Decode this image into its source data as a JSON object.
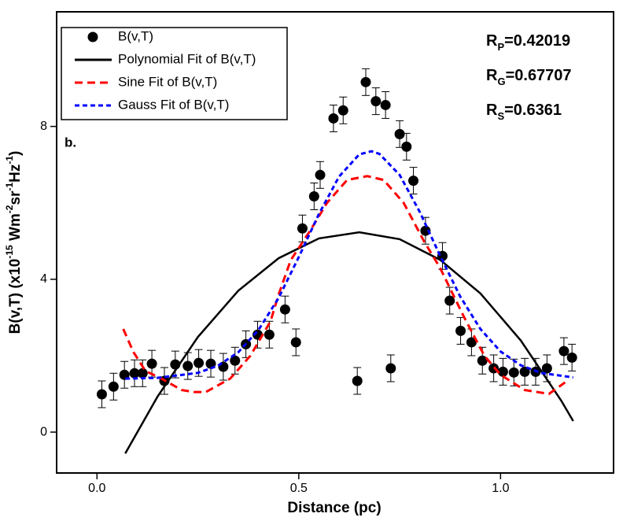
{
  "chart_data": {
    "type": "scatter",
    "xlabel": "Distance (pc)",
    "ylabel": [
      "B(v,T) (x10",
      "-15",
      " Wm",
      "-2",
      "sr",
      "-1",
      "Hz",
      "-1",
      ")"
    ],
    "xlim": [
      -0.1,
      1.28
    ],
    "ylim": [
      -1.07,
      11
    ],
    "xticks": [
      {
        "value": 0,
        "label": "0.0"
      },
      0.5,
      {
        "value": 1,
        "label": "1.0"
      }
    ],
    "yticks": [
      0,
      4,
      8
    ],
    "legend": "upper left",
    "panel_label": "b.",
    "annotations": [
      {
        "base": "R",
        "sub": "P",
        "rest": "=0.42019"
      },
      {
        "base": "R",
        "sub": "G",
        "rest": "=0.67707"
      },
      {
        "base": "R",
        "sub": "S",
        "rest": "=0.6361"
      }
    ],
    "series": [
      {
        "name": "B(v,T)",
        "type": "scatter",
        "color": "#000000",
        "x": [
          0.012,
          0.041,
          0.068,
          0.093,
          0.113,
          0.136,
          0.167,
          0.194,
          0.225,
          0.252,
          0.282,
          0.313,
          0.342,
          0.369,
          0.398,
          0.427,
          0.466,
          0.493,
          0.509,
          0.538,
          0.553,
          0.586,
          0.61,
          0.645,
          0.666,
          0.691,
          0.715,
          0.728,
          0.75,
          0.767,
          0.784,
          0.814,
          0.856,
          0.874,
          0.901,
          0.928,
          0.955,
          0.983,
          1.006,
          1.033,
          1.06,
          1.087,
          1.115,
          1.157,
          1.177
        ],
        "values": [
          0.99,
          1.19,
          1.5,
          1.54,
          1.54,
          1.79,
          1.34,
          1.77,
          1.73,
          1.81,
          1.79,
          1.71,
          1.87,
          2.3,
          2.55,
          2.55,
          3.21,
          2.35,
          5.33,
          6.17,
          6.73,
          8.21,
          8.42,
          1.34,
          9.16,
          8.66,
          8.56,
          1.67,
          7.8,
          7.47,
          6.58,
          5.27,
          4.61,
          3.44,
          2.65,
          2.35,
          1.87,
          1.67,
          1.58,
          1.56,
          1.58,
          1.58,
          1.67,
          2.12,
          1.95
        ],
        "errors": [
          0.35,
          0.35,
          0.35,
          0.35,
          0.35,
          0.35,
          0.35,
          0.35,
          0.35,
          0.35,
          0.35,
          0.35,
          0.35,
          0.35,
          0.35,
          0.35,
          0.35,
          0.35,
          0.35,
          0.35,
          0.35,
          0.35,
          0.35,
          0.35,
          0.35,
          0.35,
          0.35,
          0.35,
          0.35,
          0.35,
          0.35,
          0.35,
          0.35,
          0.35,
          0.35,
          0.35,
          0.35,
          0.35,
          0.35,
          0.35,
          0.35,
          0.35,
          0.35,
          0.35,
          0.35
        ]
      },
      {
        "name": "Polynomial Fit of B(v,T)",
        "type": "line",
        "color": "#000000",
        "dash": "none",
        "x": [
          0.07,
          0.15,
          0.25,
          0.35,
          0.45,
          0.55,
          0.65,
          0.75,
          0.85,
          0.95,
          1.05,
          1.15,
          1.18
        ],
        "values": [
          -0.56,
          0.93,
          2.49,
          3.7,
          4.55,
          5.07,
          5.23,
          5.05,
          4.51,
          3.63,
          2.4,
          0.83,
          0.29
        ]
      },
      {
        "name": "Sine Fit of B(v,T)",
        "type": "line",
        "color": "#ff0000",
        "dash": "10,6",
        "x": [
          0.065,
          0.09,
          0.12,
          0.16,
          0.21,
          0.24,
          0.27,
          0.33,
          0.38,
          0.43,
          0.45,
          0.48,
          0.53,
          0.57,
          0.62,
          0.67,
          0.71,
          0.76,
          0.81,
          0.85,
          0.91,
          0.96,
          1.0,
          1.06,
          1.12,
          1.16
        ],
        "values": [
          2.7,
          2.1,
          1.6,
          1.4,
          1.1,
          1.05,
          1.05,
          1.4,
          2.0,
          2.9,
          3.6,
          4.5,
          5.3,
          6.0,
          6.6,
          6.7,
          6.6,
          6.0,
          5.0,
          4.3,
          3.0,
          2.0,
          1.5,
          1.1,
          1.0,
          1.3
        ]
      },
      {
        "name": "Gauss Fit of B(v,T)",
        "type": "line",
        "color": "#0000ff",
        "dash": "6,4",
        "x": [
          0.07,
          0.15,
          0.25,
          0.3,
          0.35,
          0.4,
          0.45,
          0.5,
          0.55,
          0.6,
          0.65,
          0.68,
          0.7,
          0.75,
          0.8,
          0.85,
          0.9,
          0.95,
          1.0,
          1.05,
          1.1,
          1.18
        ],
        "values": [
          1.4,
          1.42,
          1.55,
          1.74,
          2.09,
          2.67,
          3.51,
          4.58,
          5.71,
          6.69,
          7.27,
          7.35,
          7.28,
          6.73,
          5.76,
          4.62,
          3.55,
          2.7,
          2.11,
          1.75,
          1.55,
          1.43
        ]
      }
    ]
  }
}
